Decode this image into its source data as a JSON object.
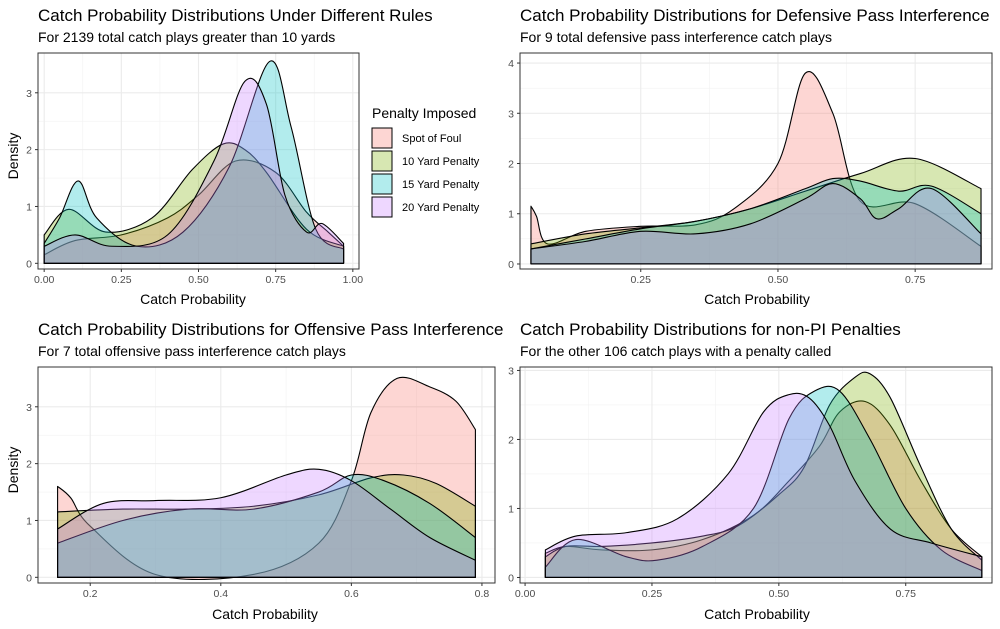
{
  "legend": {
    "title": "Penalty Imposed",
    "items": [
      {
        "label": "Spot of Foul",
        "color": "#F8766D"
      },
      {
        "label": "10 Yard Penalty",
        "color": "#7CAE00"
      },
      {
        "label": "15 Yard Penalty",
        "color": "#00BFC4"
      },
      {
        "label": "20 Yard Penalty",
        "color": "#C77CFF"
      }
    ]
  },
  "chart_data": [
    {
      "type": "area",
      "title": "Catch Probability Distributions Under Different Rules",
      "subtitle": "For 2139 total catch plays greater than 10 yards",
      "xlabel": "Catch Probability",
      "ylabel": "Density",
      "xlim": [
        -0.02,
        1.02
      ],
      "ylim": [
        -0.1,
        3.7
      ],
      "xticks": [
        0,
        0.25,
        0.5,
        0.75,
        1
      ],
      "xtick_labels": [
        "0.00",
        "0.25",
        "0.50",
        "0.75",
        "1.00"
      ],
      "yticks": [
        0,
        1,
        2,
        3
      ],
      "ytick_labels": [
        "0",
        "1",
        "2",
        "3"
      ],
      "grid": true,
      "series": [
        {
          "name": "Spot of Foul",
          "x": [
            0,
            0.1,
            0.25,
            0.4,
            0.5,
            0.62,
            0.75,
            0.85,
            0.92,
            0.97
          ],
          "y": [
            0.15,
            0.4,
            0.5,
            0.8,
            1.2,
            1.8,
            1.6,
            0.9,
            0.55,
            0.3
          ]
        },
        {
          "name": "10 Yard Penalty",
          "x": [
            0,
            0.08,
            0.2,
            0.35,
            0.48,
            0.58,
            0.65,
            0.72,
            0.85,
            0.97
          ],
          "y": [
            0.5,
            0.95,
            0.55,
            0.8,
            1.65,
            2.1,
            2.0,
            1.6,
            0.6,
            0.3
          ]
        },
        {
          "name": "15 Yard Penalty",
          "x": [
            0,
            0.05,
            0.11,
            0.17,
            0.3,
            0.45,
            0.6,
            0.73,
            0.8,
            0.88,
            0.97
          ],
          "y": [
            0.35,
            0.8,
            1.45,
            0.8,
            0.3,
            0.55,
            1.7,
            3.55,
            2.4,
            0.6,
            0.25
          ]
        },
        {
          "name": "20 Yard Penalty",
          "x": [
            0,
            0.1,
            0.22,
            0.4,
            0.55,
            0.65,
            0.72,
            0.78,
            0.85,
            0.9,
            0.97
          ],
          "y": [
            0.3,
            0.5,
            0.3,
            0.5,
            1.8,
            3.2,
            2.8,
            1.2,
            0.55,
            0.7,
            0.35
          ]
        }
      ]
    },
    {
      "type": "area",
      "title": "Catch Probability Distributions for Defensive Pass Interference",
      "subtitle": "For 9 total defensive pass interference catch plays",
      "xlabel": "Catch Probability",
      "ylabel": "",
      "xlim": [
        0.03,
        0.89
      ],
      "ylim": [
        -0.1,
        4.2
      ],
      "xticks": [
        0.25,
        0.5,
        0.75
      ],
      "xtick_labels": [
        "0.25",
        "0.50",
        "0.75"
      ],
      "yticks": [
        0,
        1,
        2,
        3,
        4
      ],
      "ytick_labels": [
        "0",
        "1",
        "2",
        "3",
        "4"
      ],
      "grid": true,
      "series": [
        {
          "name": "Spot of Foul",
          "x": [
            0.05,
            0.06,
            0.08,
            0.15,
            0.25,
            0.35,
            0.42,
            0.5,
            0.55,
            0.6,
            0.65,
            0.75,
            0.87
          ],
          "y": [
            1.15,
            0.95,
            0.4,
            0.65,
            0.75,
            0.78,
            1.1,
            2.0,
            3.8,
            3.0,
            1.25,
            1.2,
            0.35
          ]
        },
        {
          "name": "10 Yard Penalty",
          "x": [
            0.05,
            0.15,
            0.25,
            0.35,
            0.45,
            0.55,
            0.65,
            0.75,
            0.87
          ],
          "y": [
            0.4,
            0.6,
            0.72,
            0.85,
            1.1,
            1.45,
            1.8,
            2.1,
            1.5
          ]
        },
        {
          "name": "15 Yard Penalty",
          "x": [
            0.05,
            0.15,
            0.25,
            0.35,
            0.45,
            0.55,
            0.6,
            0.65,
            0.72,
            0.78,
            0.87
          ],
          "y": [
            0.3,
            0.5,
            0.7,
            0.85,
            1.1,
            1.5,
            1.7,
            1.65,
            1.45,
            1.55,
            1.0
          ]
        },
        {
          "name": "20 Yard Penalty",
          "x": [
            0.05,
            0.15,
            0.25,
            0.35,
            0.45,
            0.55,
            0.6,
            0.65,
            0.68,
            0.72,
            0.78,
            0.87
          ],
          "y": [
            0.3,
            0.45,
            0.65,
            0.6,
            0.8,
            1.3,
            1.6,
            1.3,
            0.9,
            1.1,
            1.5,
            0.6
          ]
        }
      ]
    },
    {
      "type": "area",
      "title": "Catch Probability Distributions for Offensive Pass Interference",
      "subtitle": "For 7 total offensive pass interference catch plays",
      "xlabel": "Catch Probability",
      "ylabel": "Density",
      "xlim": [
        0.12,
        0.82
      ],
      "ylim": [
        -0.1,
        3.7
      ],
      "xticks": [
        0.2,
        0.4,
        0.6,
        0.8
      ],
      "xtick_labels": [
        "0.2",
        "0.4",
        "0.6",
        "0.8"
      ],
      "yticks": [
        0,
        1,
        2,
        3
      ],
      "ytick_labels": [
        "0",
        "1",
        "2",
        "3"
      ],
      "grid": true,
      "series": [
        {
          "name": "Spot of Foul",
          "x": [
            0.15,
            0.17,
            0.2,
            0.3,
            0.45,
            0.55,
            0.6,
            0.63,
            0.67,
            0.72,
            0.76,
            0.79
          ],
          "y": [
            1.6,
            1.4,
            0.9,
            0.05,
            0.05,
            0.6,
            1.7,
            2.9,
            3.5,
            3.35,
            3.1,
            2.6
          ]
        },
        {
          "name": "10 Yard Penalty",
          "x": [
            0.15,
            0.25,
            0.35,
            0.45,
            0.55,
            0.63,
            0.68,
            0.73,
            0.79
          ],
          "y": [
            1.15,
            1.2,
            1.2,
            1.25,
            1.45,
            1.75,
            1.8,
            1.65,
            1.25
          ]
        },
        {
          "name": "15 Yard Penalty",
          "x": [
            0.15,
            0.25,
            0.35,
            0.45,
            0.55,
            0.6,
            0.65,
            0.72,
            0.79
          ],
          "y": [
            0.6,
            1.0,
            1.2,
            1.2,
            1.5,
            1.8,
            1.7,
            1.3,
            0.7
          ]
        },
        {
          "name": "20 Yard Penalty",
          "x": [
            0.15,
            0.22,
            0.3,
            0.4,
            0.5,
            0.55,
            0.6,
            0.66,
            0.72,
            0.79
          ],
          "y": [
            0.85,
            1.3,
            1.35,
            1.4,
            1.8,
            1.9,
            1.7,
            1.2,
            0.7,
            0.3
          ]
        }
      ]
    },
    {
      "type": "area",
      "title": "Catch Probability Distributions for non-PI Penalties",
      "subtitle": "For the other 106 catch plays with a penalty called",
      "xlabel": "Catch Probability",
      "ylabel": "",
      "xlim": [
        -0.01,
        0.92
      ],
      "ylim": [
        -0.08,
        3.05
      ],
      "xticks": [
        0,
        0.25,
        0.5,
        0.75
      ],
      "xtick_labels": [
        "0.00",
        "0.25",
        "0.50",
        "0.75"
      ],
      "yticks": [
        0,
        1,
        2,
        3
      ],
      "ytick_labels": [
        "0",
        "1",
        "2",
        "3"
      ],
      "grid": true,
      "series": [
        {
          "name": "Spot of Foul",
          "x": [
            0.04,
            0.08,
            0.15,
            0.25,
            0.35,
            0.45,
            0.52,
            0.58,
            0.62,
            0.67,
            0.72,
            0.78,
            0.84,
            0.9
          ],
          "y": [
            0.35,
            0.45,
            0.4,
            0.4,
            0.55,
            0.9,
            1.4,
            1.9,
            2.4,
            2.55,
            2.2,
            1.4,
            0.7,
            0.3
          ]
        },
        {
          "name": "10 Yard Penalty",
          "x": [
            0.04,
            0.08,
            0.15,
            0.25,
            0.35,
            0.42,
            0.5,
            0.55,
            0.6,
            0.65,
            0.68,
            0.72,
            0.78,
            0.84,
            0.9
          ],
          "y": [
            0.3,
            0.45,
            0.45,
            0.5,
            0.6,
            0.75,
            1.2,
            1.6,
            2.5,
            2.9,
            2.95,
            2.6,
            1.6,
            0.7,
            0.25
          ]
        },
        {
          "name": "15 Yard Penalty",
          "x": [
            0.04,
            0.1,
            0.2,
            0.26,
            0.35,
            0.45,
            0.52,
            0.57,
            0.62,
            0.68,
            0.75,
            0.82,
            0.9
          ],
          "y": [
            0.15,
            0.55,
            0.3,
            0.25,
            0.45,
            1.0,
            2.3,
            2.7,
            2.7,
            2.0,
            1.0,
            0.4,
            0.1
          ]
        },
        {
          "name": "20 Yard Penalty",
          "x": [
            0.04,
            0.1,
            0.2,
            0.3,
            0.4,
            0.47,
            0.52,
            0.56,
            0.6,
            0.65,
            0.72,
            0.8,
            0.9
          ],
          "y": [
            0.4,
            0.6,
            0.65,
            0.85,
            1.5,
            2.4,
            2.65,
            2.6,
            2.2,
            1.4,
            0.7,
            0.5,
            0.3
          ]
        }
      ]
    }
  ]
}
